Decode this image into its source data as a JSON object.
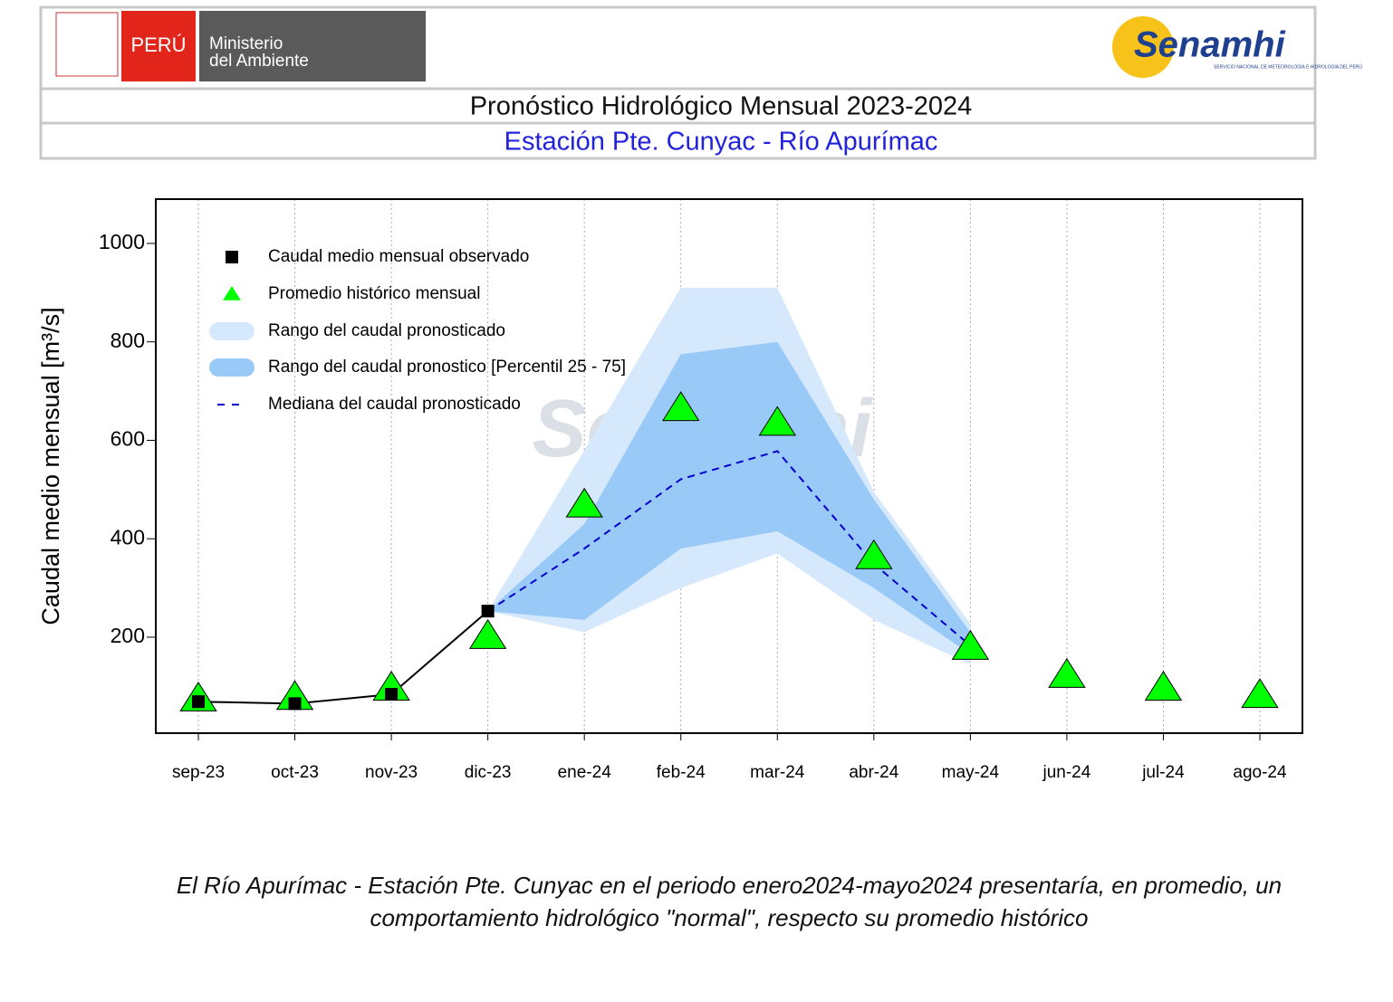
{
  "header": {
    "country": "PERÚ",
    "ministry_line1": "Ministerio",
    "ministry_line2": "del Ambiente",
    "agency": "Senamhi",
    "agency_subtitle": "SERVICIO NACIONAL DE METEOROLOGÍA E HIDROLOGÍA DEL PERÚ",
    "title": "Pronóstico Hidrológico Mensual 2023-2024",
    "subtitle": "Estación Pte. Cunyac - Río Apurímac"
  },
  "chart_data": {
    "type": "line",
    "y_label": "Caudal medio mensual  [m³/s]",
    "watermark": "Senamhi",
    "categories": [
      "sep-23",
      "oct-23",
      "nov-23",
      "dic-23",
      "ene-24",
      "feb-24",
      "mar-24",
      "abr-24",
      "may-24",
      "jun-24",
      "jul-24",
      "ago-24"
    ],
    "ylim": [
      5,
      1090
    ],
    "yticks": [
      200,
      400,
      600,
      800,
      1000
    ],
    "grid": true,
    "bands": [
      {
        "name": "Rango del caudal pronosticado",
        "color": "#d6e9fc",
        "low": [
          null,
          null,
          null,
          253,
          210,
          300,
          370,
          235,
          145,
          null,
          null,
          null
        ],
        "high": [
          null,
          null,
          null,
          253,
          580,
          910,
          910,
          495,
          228,
          null,
          null,
          null
        ]
      },
      {
        "name": "Rango del caudal pronostico [Percentil 25 - 75]",
        "color": "#99caf7",
        "low": [
          null,
          null,
          null,
          253,
          235,
          380,
          415,
          300,
          165,
          null,
          null,
          null
        ],
        "high": [
          null,
          null,
          null,
          253,
          430,
          775,
          800,
          480,
          210,
          null,
          null,
          null
        ]
      }
    ],
    "series": [
      {
        "name": "Caudal medio mensual observado",
        "color": "#000000",
        "marker": "square",
        "values": [
          69,
          65,
          84,
          253,
          null,
          null,
          null,
          null,
          null,
          null,
          null,
          null
        ]
      },
      {
        "name": "Promedio histórico mensual",
        "color": "#00ff00",
        "marker": "triangle",
        "values": [
          75,
          78,
          97,
          202,
          469,
          665,
          635,
          364,
          180,
          123,
          97,
          82
        ]
      },
      {
        "name": "Mediana del caudal pronosticado",
        "color": "#0000cc",
        "marker": "dashed",
        "values": [
          null,
          null,
          null,
          253,
          380,
          521,
          578,
          349,
          183,
          null,
          null,
          null
        ]
      }
    ]
  },
  "caption": "El Río Apurímac - Estación Pte. Cunyac en el periodo enero2024-mayo2024 presentaría, en promedio, un comportamiento hidrológico \"normal\", respecto su promedio histórico"
}
